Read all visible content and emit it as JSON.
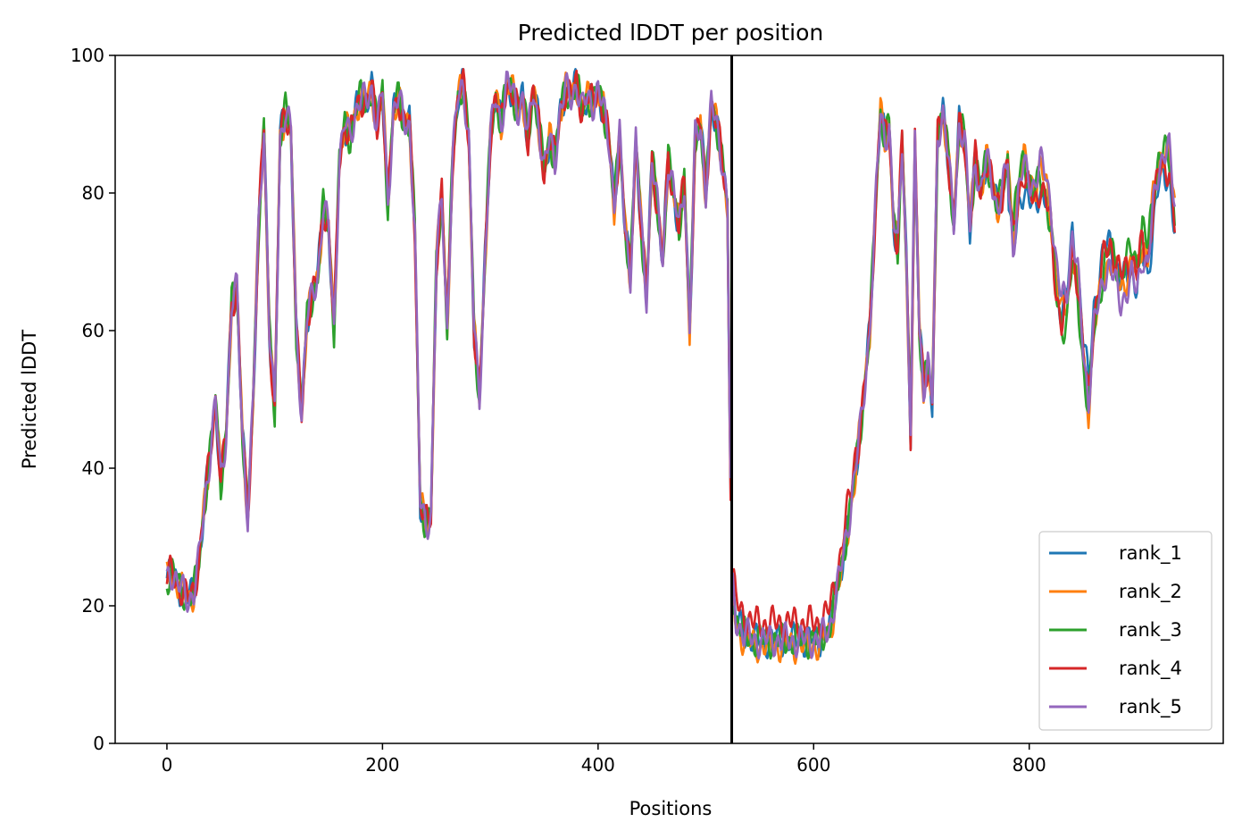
{
  "chart_data": {
    "type": "line",
    "title": "Predicted lDDT per position",
    "xlabel": "Positions",
    "ylabel": "Predicted lDDT",
    "xlim": [
      -48,
      980
    ],
    "ylim": [
      0,
      100
    ],
    "xticks": [
      0,
      200,
      400,
      600,
      800
    ],
    "yticks": [
      0,
      20,
      40,
      60,
      80,
      100
    ],
    "grid": false,
    "legend_position": "lower right",
    "vline_x": 524,
    "base_profile": {
      "x": [
        0,
        5,
        10,
        15,
        20,
        25,
        30,
        35,
        40,
        45,
        50,
        55,
        60,
        65,
        70,
        75,
        80,
        85,
        90,
        95,
        100,
        105,
        110,
        115,
        120,
        125,
        130,
        135,
        140,
        145,
        150,
        155,
        160,
        165,
        170,
        175,
        180,
        185,
        190,
        195,
        200,
        205,
        210,
        215,
        220,
        225,
        230,
        235,
        240,
        245,
        250,
        255,
        260,
        265,
        270,
        275,
        280,
        285,
        290,
        295,
        300,
        305,
        310,
        315,
        320,
        325,
        330,
        335,
        340,
        345,
        350,
        355,
        360,
        365,
        370,
        375,
        380,
        385,
        390,
        395,
        400,
        405,
        410,
        415,
        420,
        425,
        430,
        435,
        440,
        445,
        450,
        455,
        460,
        465,
        470,
        475,
        480,
        485,
        490,
        495,
        500,
        505,
        510,
        515,
        520,
        524,
        528,
        535,
        545,
        555,
        565,
        575,
        585,
        595,
        605,
        615,
        625,
        635,
        645,
        652,
        658,
        662,
        666,
        670,
        674,
        678,
        682,
        686,
        690,
        694,
        698,
        702,
        706,
        710,
        715,
        720,
        725,
        730,
        735,
        740,
        745,
        750,
        755,
        760,
        765,
        770,
        775,
        780,
        785,
        790,
        795,
        800,
        805,
        810,
        815,
        820,
        825,
        830,
        835,
        840,
        845,
        850,
        855,
        860,
        865,
        870,
        875,
        880,
        885,
        890,
        895,
        900,
        905,
        910,
        915,
        920,
        925,
        930,
        935
      ],
      "y": [
        24,
        25,
        23,
        22,
        21,
        22,
        27,
        35,
        42,
        50,
        38,
        45,
        64,
        66,
        45,
        33,
        50,
        75,
        90,
        60,
        48,
        88,
        92,
        89,
        60,
        48,
        62,
        65,
        68,
        78,
        75,
        60,
        85,
        90,
        88,
        92,
        94,
        93,
        95,
        90,
        95,
        78,
        92,
        94,
        90,
        90,
        75,
        35,
        32,
        33,
        70,
        80,
        60,
        85,
        94,
        96,
        88,
        60,
        50,
        70,
        88,
        94,
        90,
        96,
        95,
        92,
        94,
        88,
        95,
        90,
        83,
        88,
        85,
        92,
        95,
        94,
        96,
        92,
        94,
        93,
        95,
        92,
        88,
        78,
        88,
        75,
        68,
        88,
        75,
        65,
        85,
        78,
        70,
        85,
        80,
        75,
        82,
        60,
        88,
        90,
        80,
        93,
        90,
        85,
        78,
        24,
        18,
        16,
        15,
        15,
        15,
        15,
        15,
        15,
        15,
        17,
        25,
        35,
        48,
        60,
        80,
        92,
        88,
        90,
        76,
        72,
        88,
        70,
        45,
        88,
        60,
        52,
        55,
        50,
        88,
        92,
        85,
        75,
        90,
        88,
        75,
        85,
        80,
        85,
        82,
        78,
        80,
        85,
        75,
        82,
        85,
        82,
        80,
        82,
        80,
        75,
        65,
        60,
        62,
        70,
        65,
        55,
        48,
        60,
        65,
        70,
        72,
        70,
        68,
        70,
        72,
        70,
        75,
        72,
        80,
        85,
        86,
        85,
        76
      ]
    },
    "series": [
      {
        "name": "rank_1",
        "color": "#1f77b4"
      },
      {
        "name": "rank_2",
        "color": "#ff7f0e"
      },
      {
        "name": "rank_3",
        "color": "#2ca02c"
      },
      {
        "name": "rank_4",
        "color": "#d62728"
      },
      {
        "name": "rank_5",
        "color": "#9467bd"
      }
    ]
  }
}
